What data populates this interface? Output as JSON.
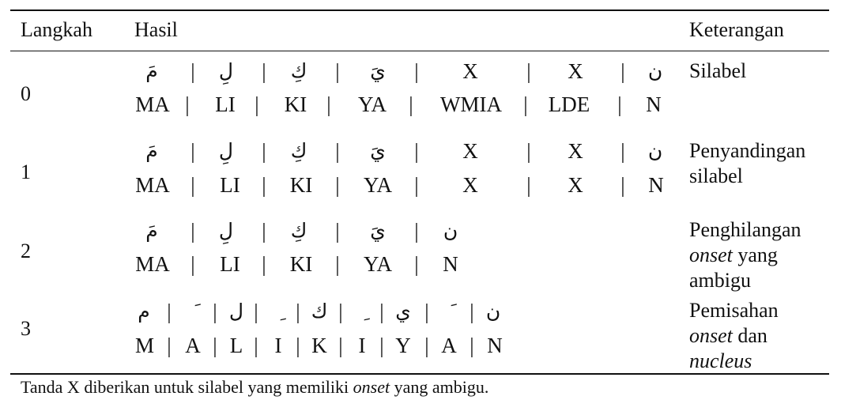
{
  "headers": {
    "step": "Langkah",
    "result": "Hasil",
    "note": "Keterangan"
  },
  "sep": "|",
  "rows": [
    {
      "step": "0",
      "arabic": [
        "مَ",
        "لِ",
        "كِ",
        "يَ",
        "X",
        "X",
        "ن"
      ],
      "latin": [
        "MA",
        "LI",
        "KI",
        "YA",
        "WMIA",
        "LDE",
        "N"
      ],
      "note": {
        "line1": "Silabel"
      }
    },
    {
      "step": "1",
      "arabic": [
        "مَ",
        "لِ",
        "كِ",
        "يَ",
        "X",
        "X",
        "ن"
      ],
      "latin": [
        "MA",
        "LI",
        "KI",
        "YA",
        "X",
        "X",
        "N"
      ],
      "note": {
        "line1": "Penyandingan",
        "line2": "silabel"
      }
    },
    {
      "step": "2",
      "arabic": [
        "مَ",
        "لِ",
        "كِ",
        "يَ",
        "ن"
      ],
      "latin": [
        "MA",
        "LI",
        "KI",
        "YA",
        "N"
      ],
      "note": {
        "line1": "Penghilangan",
        "line2_em": "onset",
        "line2_rest": " yang",
        "line3": "ambigu"
      }
    },
    {
      "step": "3",
      "arabic": [
        "م",
        "َ",
        "ل",
        "ِ",
        "ك",
        "ِ",
        "ي",
        "َ",
        "ن"
      ],
      "latin": [
        "M",
        "A",
        "L",
        "I",
        "K",
        "I",
        "Y",
        "A",
        "N"
      ],
      "note": {
        "line1": "Pemisahan",
        "line2_em": "onset",
        "line2_rest": " dan",
        "line3_em": "nucleus"
      }
    }
  ],
  "footnote": {
    "pre": "Tanda X diberikan untuk silabel yang memiliki ",
    "em": "onset",
    "post": " yang ambigu."
  }
}
